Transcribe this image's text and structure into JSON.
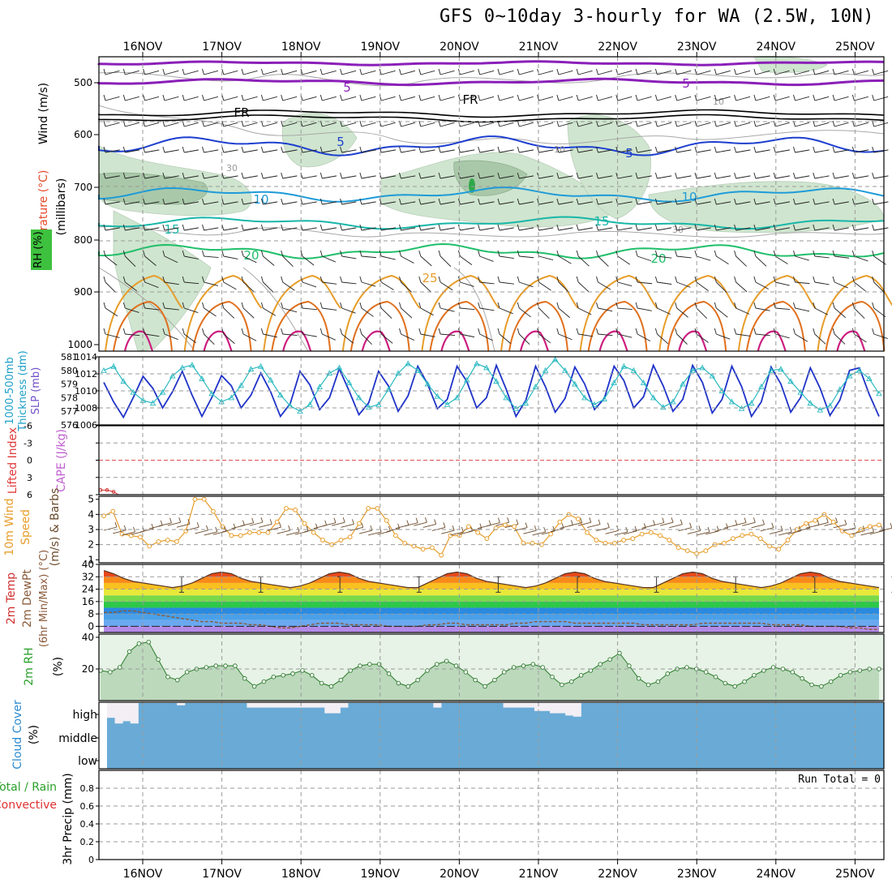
{
  "title": "GFS 0~10day 3-hourly for WA (2.5W, 10N)",
  "dates": [
    "16NOV",
    "17NOV",
    "18NOV",
    "19NOV",
    "20NOV",
    "21NOV",
    "22NOV",
    "23NOV",
    "24NOV",
    "25NOV"
  ],
  "colors": {
    "rh_shade": "#cfe5cf",
    "rh_dark": "#a9c8a9",
    "purple": "#8a1fb8",
    "blue_dark": "#1d3fcf",
    "blue_mid": "#1e9bd8",
    "teal": "#17b6a8",
    "green": "#1fbf6a",
    "orange": "#e79d2a",
    "orange_dark": "#e0701e",
    "magenta": "#cc1d7f",
    "cloud_blue": "#69abd6",
    "slp_color": "#1e32c8",
    "thick_color": "#2ab9c0",
    "wind10_color": "#e79d2a"
  },
  "panels": {
    "upper": {
      "ylabel_wind": "Wind (m/s)",
      "ylabel_temp": "Temperature (°C)",
      "ylabel_rh": "RH (%)",
      "ylabel_p": "(millibars)",
      "ticks": [
        "500",
        "600",
        "700",
        "800",
        "900",
        "1000"
      ],
      "contour_labels": [
        "5",
        "5",
        "FR",
        "FR",
        "5",
        "5",
        "10",
        "10",
        "15",
        "15",
        "20",
        "20",
        "25",
        "30",
        "30",
        "10",
        "10"
      ]
    },
    "thickslp": {
      "ylabel_a": "1000-500mb",
      "ylabel_b": "Thickness (dm)",
      "ylabel_c": "SLP (mb)",
      "ticks_left": [
        "581",
        "580",
        "579",
        "578",
        "577",
        "576"
      ],
      "ticks_right": [
        "1014",
        "1012",
        "1010",
        "1008",
        "1006"
      ]
    },
    "cape": {
      "ylabel_a": "Lifted Index",
      "ylabel_b": "CAPE (J/kg)",
      "ticks": [
        "-6",
        "-3",
        "0",
        "3",
        "6"
      ]
    },
    "wind10": {
      "ylabel_a": "10m Wind",
      "ylabel_b": "Speed",
      "ylabel_c": "(m/s) & Barbs",
      "ticks": [
        "5",
        "4",
        "3",
        "2",
        "1"
      ]
    },
    "temp2m": {
      "ylabel_a": "2m Temp",
      "ylabel_b": "2m DewPt",
      "ylabel_c": "(6hr Min/Max) (°C)",
      "ticks": [
        "40",
        "32",
        "24",
        "16",
        "8",
        "0"
      ]
    },
    "rh2m": {
      "ylabel_a": "2m RH",
      "ylabel_b": "(%)",
      "ticks": [
        "40",
        "20"
      ]
    },
    "cloud": {
      "ylabel_a": "Cloud Cover",
      "ylabel_b": "(%)",
      "ticks": [
        "high",
        "middle",
        "low"
      ]
    },
    "precip": {
      "ylabel_a": "3hr Precip (mm)",
      "ylabel_b": "Total / Rain",
      "ylabel_c": "Convective",
      "ticks": [
        "0.8",
        "0.6",
        "0.4",
        "0.2",
        "0"
      ],
      "run_total": "Run Total = 0"
    }
  },
  "chart_data": {
    "type": "line",
    "x_categories": [
      "16NOV",
      "17NOV",
      "18NOV",
      "19NOV",
      "20NOV",
      "21NOV",
      "22NOV",
      "23NOV",
      "24NOV",
      "25NOV"
    ],
    "thickness_dm": [
      580.0,
      580.3,
      579.2,
      578.4,
      577.8,
      577.6,
      578.4,
      579.6,
      580.2,
      580.4,
      579.4,
      578.3,
      577.7,
      578.0,
      578.9,
      580.1,
      580.3,
      579.3,
      578.2,
      577.4,
      577.0,
      577.5,
      578.8,
      579.8,
      580.2,
      579.1,
      578.0,
      577.3,
      577.5,
      578.6,
      579.8,
      580.5,
      580.0,
      579.0,
      578.1,
      577.5,
      578.0,
      579.3,
      580.5,
      580.2,
      579.2,
      578.0,
      577.2,
      577.6,
      578.8,
      580.0,
      580.8,
      580.0,
      579.0,
      578.0,
      577.5,
      577.9,
      579.1,
      580.3,
      580.0,
      579.1,
      578.0,
      577.3,
      577.7,
      579.0,
      580.0,
      580.2,
      579.6,
      578.5,
      577.7,
      577.2,
      577.6,
      578.8,
      580.0,
      580.1,
      579.2,
      578.4,
      577.6,
      577.1,
      577.4,
      578.6,
      579.6,
      580.0,
      579.4,
      578.3
    ],
    "slp_mb": [
      1011.0,
      1008.7,
      1006.9,
      1009.2,
      1011.7,
      1010.3,
      1008.0,
      1009.9,
      1012.3,
      1009.5,
      1007.0,
      1009.2,
      1011.8,
      1010.6,
      1008.0,
      1009.5,
      1012.1,
      1009.9,
      1007.0,
      1008.5,
      1012.3,
      1010.7,
      1007.8,
      1009.2,
      1012.6,
      1010.0,
      1007.2,
      1008.6,
      1012.3,
      1010.6,
      1007.6,
      1009.4,
      1012.9,
      1010.8,
      1007.9,
      1009.0,
      1012.9,
      1011.1,
      1008.0,
      1009.2,
      1013.0,
      1010.2,
      1007.0,
      1008.9,
      1012.9,
      1010.5,
      1007.5,
      1009.1,
      1012.8,
      1010.8,
      1007.8,
      1009.1,
      1012.9,
      1011.2,
      1008.0,
      1009.3,
      1013.0,
      1010.6,
      1007.6,
      1009.0,
      1013.0,
      1011.0,
      1007.4,
      1009.0,
      1012.9,
      1010.5,
      1007.0,
      1008.7,
      1012.8,
      1010.8,
      1007.5,
      1009.2,
      1012.7,
      1010.3,
      1007.1,
      1008.9,
      1012.4,
      1012.7,
      1009.6,
      1007.0
    ],
    "wind10m_speed_ms": [
      3.9,
      4.2,
      2.7,
      2.6,
      2.5,
      1.9,
      2.2,
      2.3,
      2.2,
      2.9,
      5.0,
      5.0,
      4.2,
      3.2,
      2.6,
      2.6,
      2.8,
      2.8,
      2.8,
      3.5,
      4.4,
      4.3,
      3.4,
      2.8,
      2.3,
      2.0,
      2.3,
      2.5,
      3.4,
      4.4,
      4.4,
      3.6,
      2.6,
      2.1,
      1.9,
      1.7,
      1.8,
      1.3,
      2.6,
      2.6,
      3.2,
      2.8,
      2.4,
      3.1,
      3.3,
      3.2,
      2.1,
      2.1,
      2.0,
      2.7,
      3.5,
      4.0,
      3.7,
      2.8,
      2.3,
      2.1,
      2.1,
      2.3,
      2.4,
      2.7,
      2.8,
      2.6,
      2.3,
      1.8,
      1.6,
      1.4,
      1.6,
      2.0,
      2.1,
      2.4,
      2.6,
      2.7,
      2.4,
      1.9,
      1.7,
      2.3,
      3.0,
      3.4,
      3.6,
      4.0,
      3.5,
      2.9,
      2.6,
      3.0,
      3.2,
      3.3
    ],
    "temp2m_c": [
      36,
      34,
      31,
      29,
      28,
      27,
      26,
      25,
      26,
      28,
      31,
      34,
      35,
      34,
      31,
      29,
      28,
      27,
      26,
      25,
      26,
      28,
      31,
      34,
      35,
      34,
      31,
      29,
      28,
      27,
      26,
      25,
      25,
      28,
      31,
      34,
      35,
      34,
      31,
      29,
      28,
      27,
      26,
      25,
      26,
      28,
      31,
      34,
      35,
      34,
      31,
      29,
      28,
      27,
      26,
      25,
      25,
      28,
      31,
      34,
      35,
      34,
      31,
      29,
      28,
      27,
      26,
      25,
      26,
      28,
      31,
      34,
      35,
      34,
      31,
      29,
      28,
      27,
      26,
      25
    ],
    "dewpt2m_c": [
      9,
      9,
      10,
      10,
      9,
      8,
      7,
      6,
      5,
      4,
      3,
      3,
      2,
      2,
      2,
      1,
      1,
      0,
      -1,
      -1,
      0,
      1,
      2,
      2,
      2,
      1,
      1,
      1,
      1,
      0,
      0,
      0,
      0,
      1,
      1,
      2,
      2,
      1,
      1,
      1,
      1,
      1,
      2,
      2,
      3,
      3,
      3,
      3,
      2,
      2,
      2,
      2,
      2,
      2,
      2,
      1,
      1,
      1,
      1,
      1,
      1,
      2,
      2,
      2,
      2,
      2,
      2,
      2,
      1,
      1,
      1,
      1,
      0,
      0,
      0,
      0,
      -1,
      -1,
      -2,
      -2
    ],
    "rh2m_pct": [
      19,
      18,
      21,
      31,
      36,
      37,
      26,
      15,
      13,
      18,
      20,
      21,
      22,
      22,
      22,
      14,
      9,
      12,
      15,
      16,
      17,
      19,
      16,
      11,
      9,
      13,
      19,
      22,
      23,
      23,
      17,
      11,
      9,
      13,
      19,
      23,
      25,
      22,
      18,
      13,
      9,
      13,
      18,
      21,
      22,
      23,
      21,
      15,
      10,
      12,
      16,
      19,
      23,
      26,
      30,
      22,
      14,
      10,
      12,
      17,
      20,
      21,
      20,
      18,
      15,
      11,
      9,
      12,
      16,
      19,
      21,
      20,
      18,
      14,
      10,
      9,
      12,
      16,
      18,
      19,
      20,
      20
    ],
    "cloud_high_pct": [
      65,
      90,
      80,
      90,
      0,
      0,
      0,
      0,
      0,
      10,
      0,
      0,
      0,
      0,
      0,
      0,
      0,
      0,
      20,
      20,
      20,
      20,
      20,
      20,
      20,
      20,
      20,
      20,
      45,
      45,
      20,
      0,
      0,
      0,
      0,
      0,
      0,
      0,
      0,
      0,
      0,
      0,
      20,
      0,
      0,
      0,
      0,
      0,
      0,
      0,
      0,
      20,
      20,
      20,
      20,
      35,
      35,
      45,
      45,
      55,
      60,
      0,
      0,
      0,
      0,
      0,
      0,
      0,
      0,
      0,
      0,
      0,
      0,
      0,
      0,
      0,
      0,
      0,
      0,
      0,
      0,
      0,
      0,
      0,
      0,
      0,
      0,
      0,
      0,
      0,
      0,
      0,
      0,
      0,
      0,
      0,
      0,
      0,
      0,
      0
    ],
    "precip_3hr_mm_total": 0,
    "lifted_index_early": [
      5.2,
      5.2,
      5.5
    ]
  }
}
